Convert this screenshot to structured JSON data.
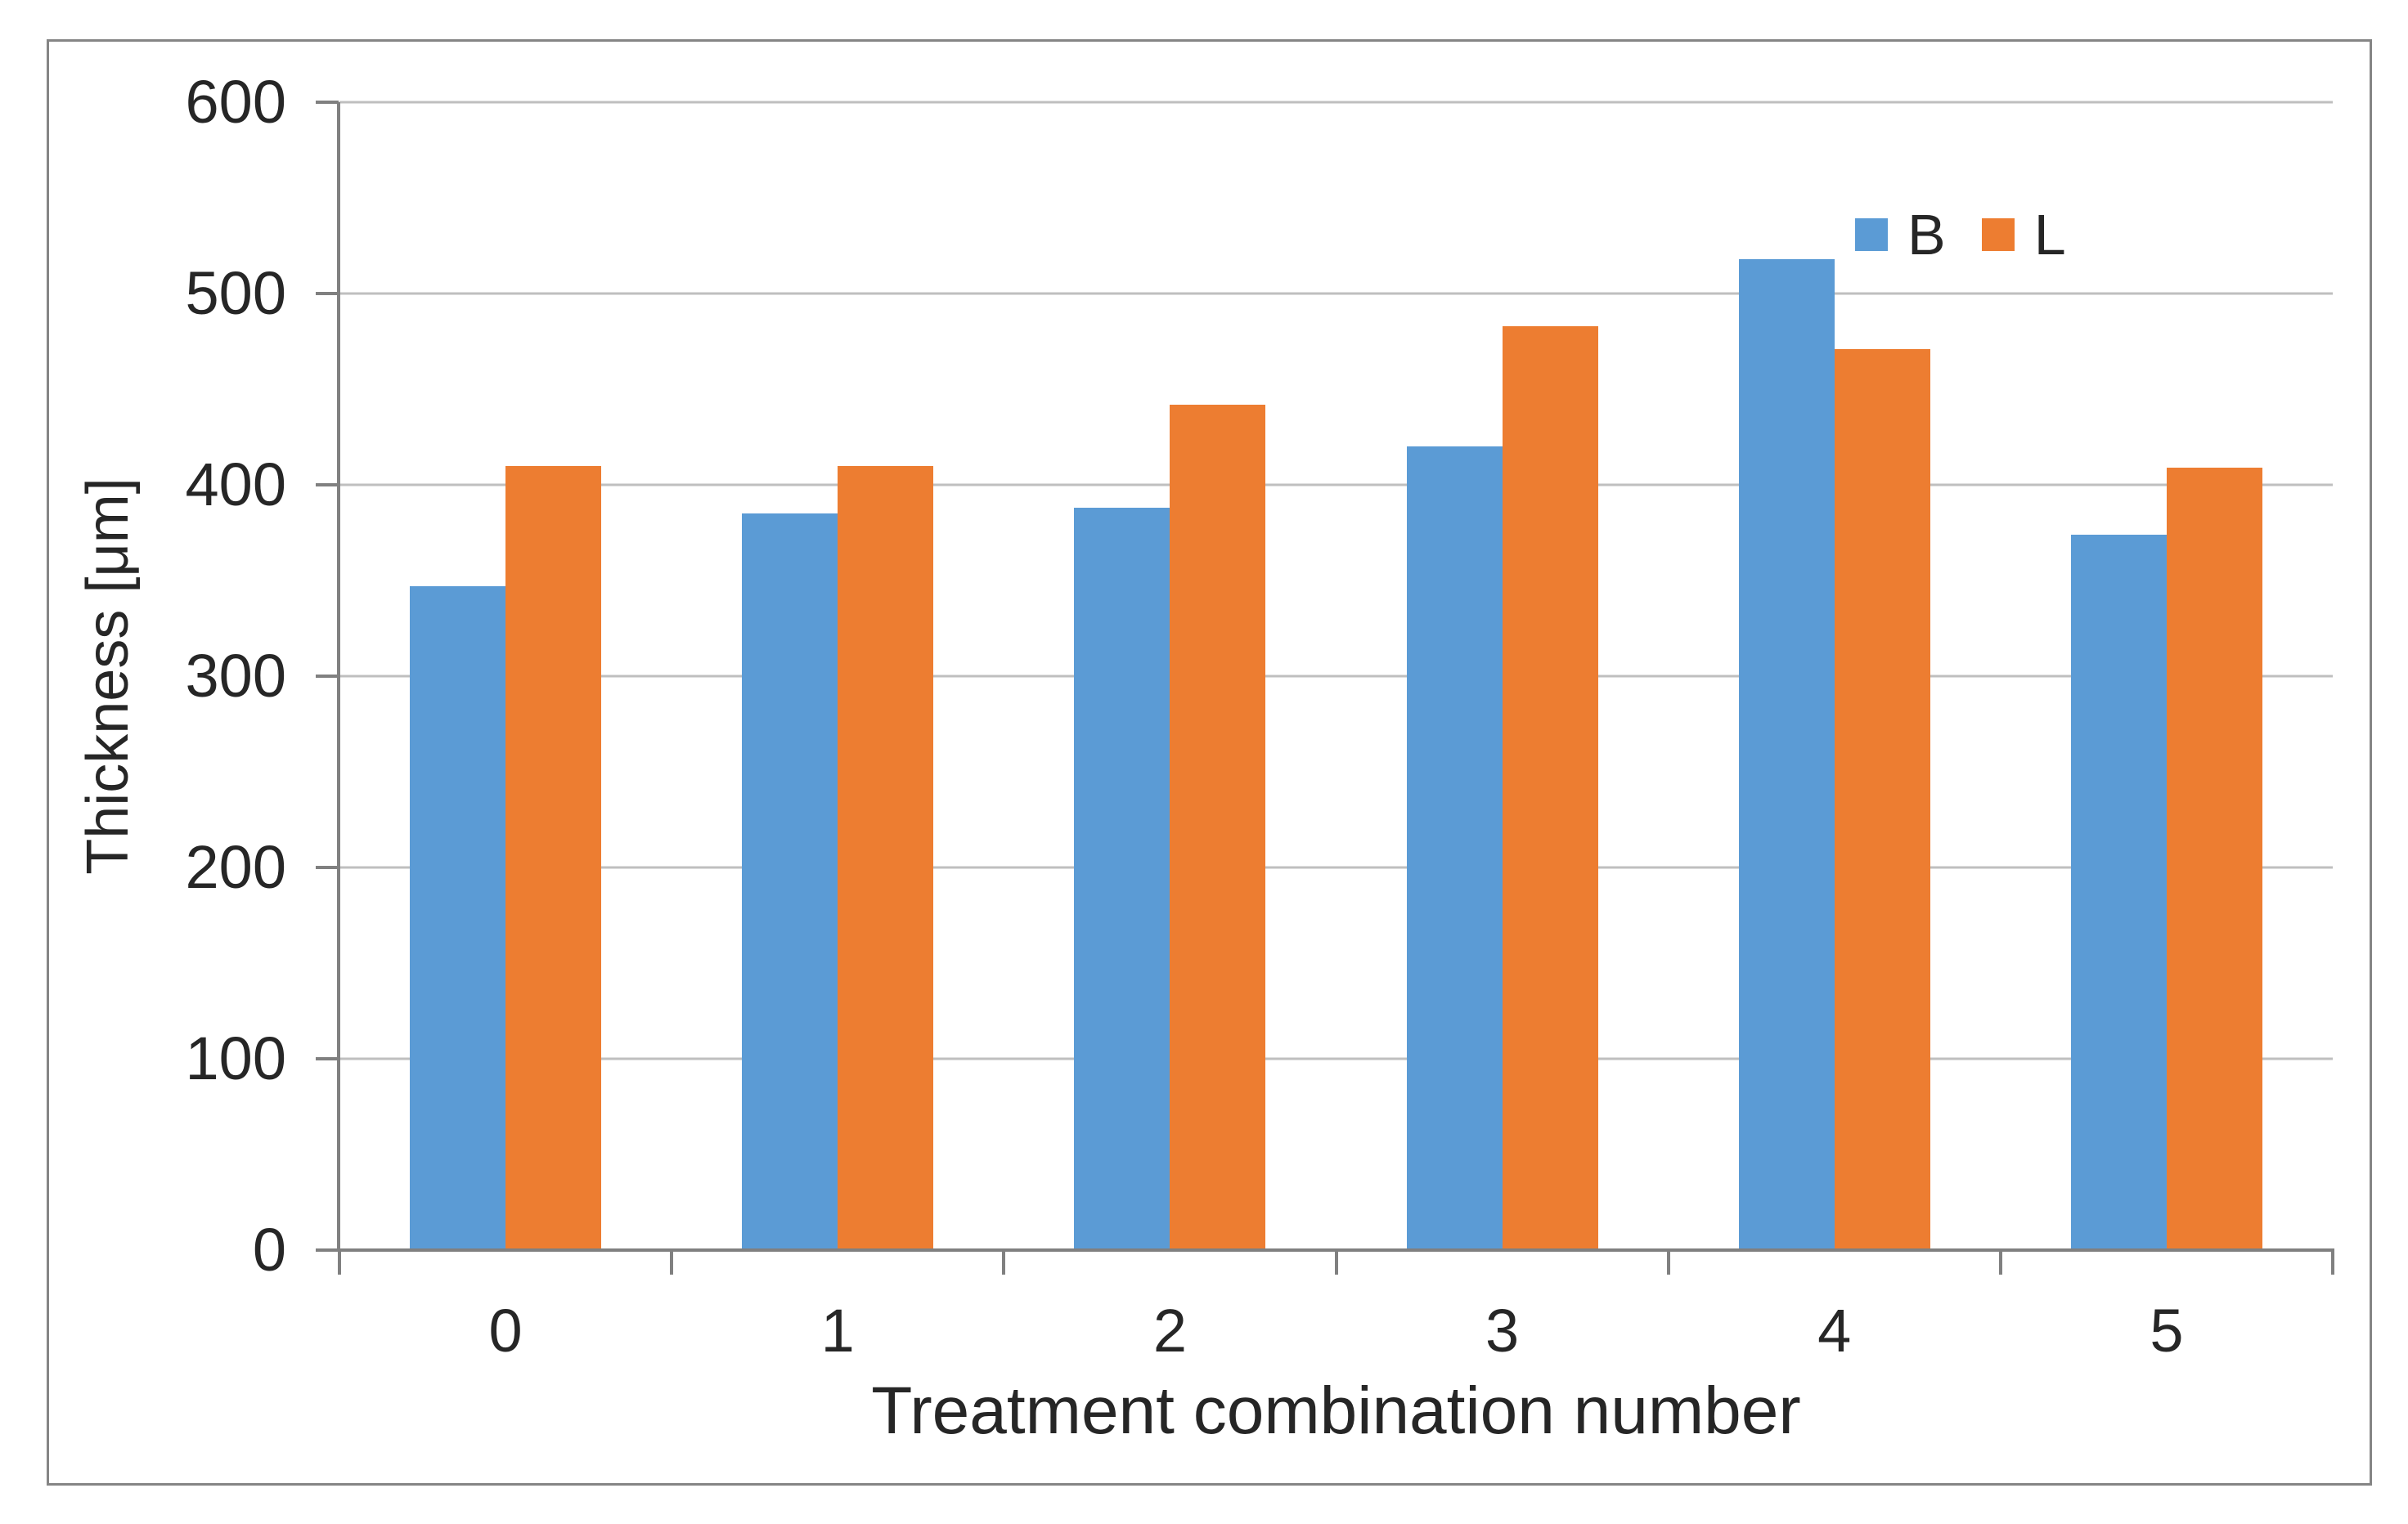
{
  "chart_data": {
    "type": "bar",
    "title": "",
    "xlabel": "Treatment combination number",
    "ylabel": "Thickness [μm]",
    "categories": [
      "0",
      "1",
      "2",
      "3",
      "4",
      "5"
    ],
    "series": [
      {
        "name": "B",
        "color": "#5B9BD5",
        "values": [
          347,
          385,
          388,
          420,
          518,
          374
        ]
      },
      {
        "name": "L",
        "color": "#ED7D31",
        "values": [
          410,
          410,
          442,
          483,
          471,
          409
        ]
      }
    ],
    "ylim": [
      0,
      600
    ],
    "y_ticks": [
      0,
      100,
      200,
      300,
      400,
      500,
      600
    ],
    "grid": true,
    "legend_position": "top-right",
    "gridline_color": "#BFBFBF",
    "axis_line_color": "#808080",
    "text_color": "#262626"
  }
}
